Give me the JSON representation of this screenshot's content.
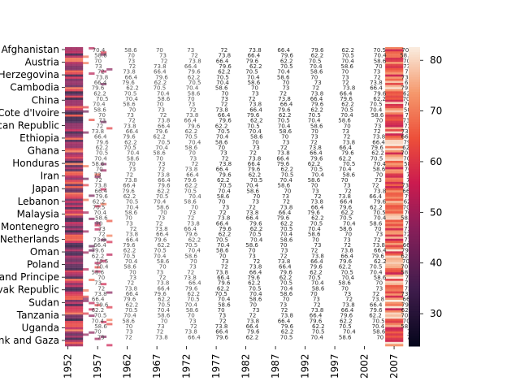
{
  "chart_data": {
    "type": "heatmap",
    "title": "",
    "xlabel": "",
    "ylabel": "",
    "x_tick_labels": [
      "1952",
      "1957",
      "1962",
      "1967",
      "1972",
      "1977",
      "1982",
      "1987",
      "1992",
      "1997",
      "2002",
      "2007"
    ],
    "y_tick_labels": [
      "Afghanistan",
      "Austria",
      "Bosnia and Herzegovina",
      "Cambodia",
      "China",
      "Cote d'Ivoire",
      "Dominican Republic",
      "Ethiopia",
      "Ghana",
      "Honduras",
      "Iran",
      "Japan",
      "Lebanon",
      "Malaysia",
      "Montenegro",
      "Netherlands",
      "Oman",
      "Poland",
      "Sao Tome and Principe",
      "Slovak Republic",
      "Sudan",
      "Tanzania",
      "Uganda",
      "West Bank and Gaza"
    ],
    "year_range": [
      1952,
      2008
    ],
    "colormap": "rocket",
    "colorbar": {
      "ticks": [
        30,
        40,
        50,
        60,
        70,
        80
      ],
      "range": [
        23.6,
        82.6
      ]
    },
    "cell_annotations": true,
    "visible_annotation_values": [
      "70.4",
      "58.6",
      "70",
      "73",
      "72",
      "73.8",
      "66.4",
      "79.6",
      "62.2",
      "70.5"
    ]
  }
}
